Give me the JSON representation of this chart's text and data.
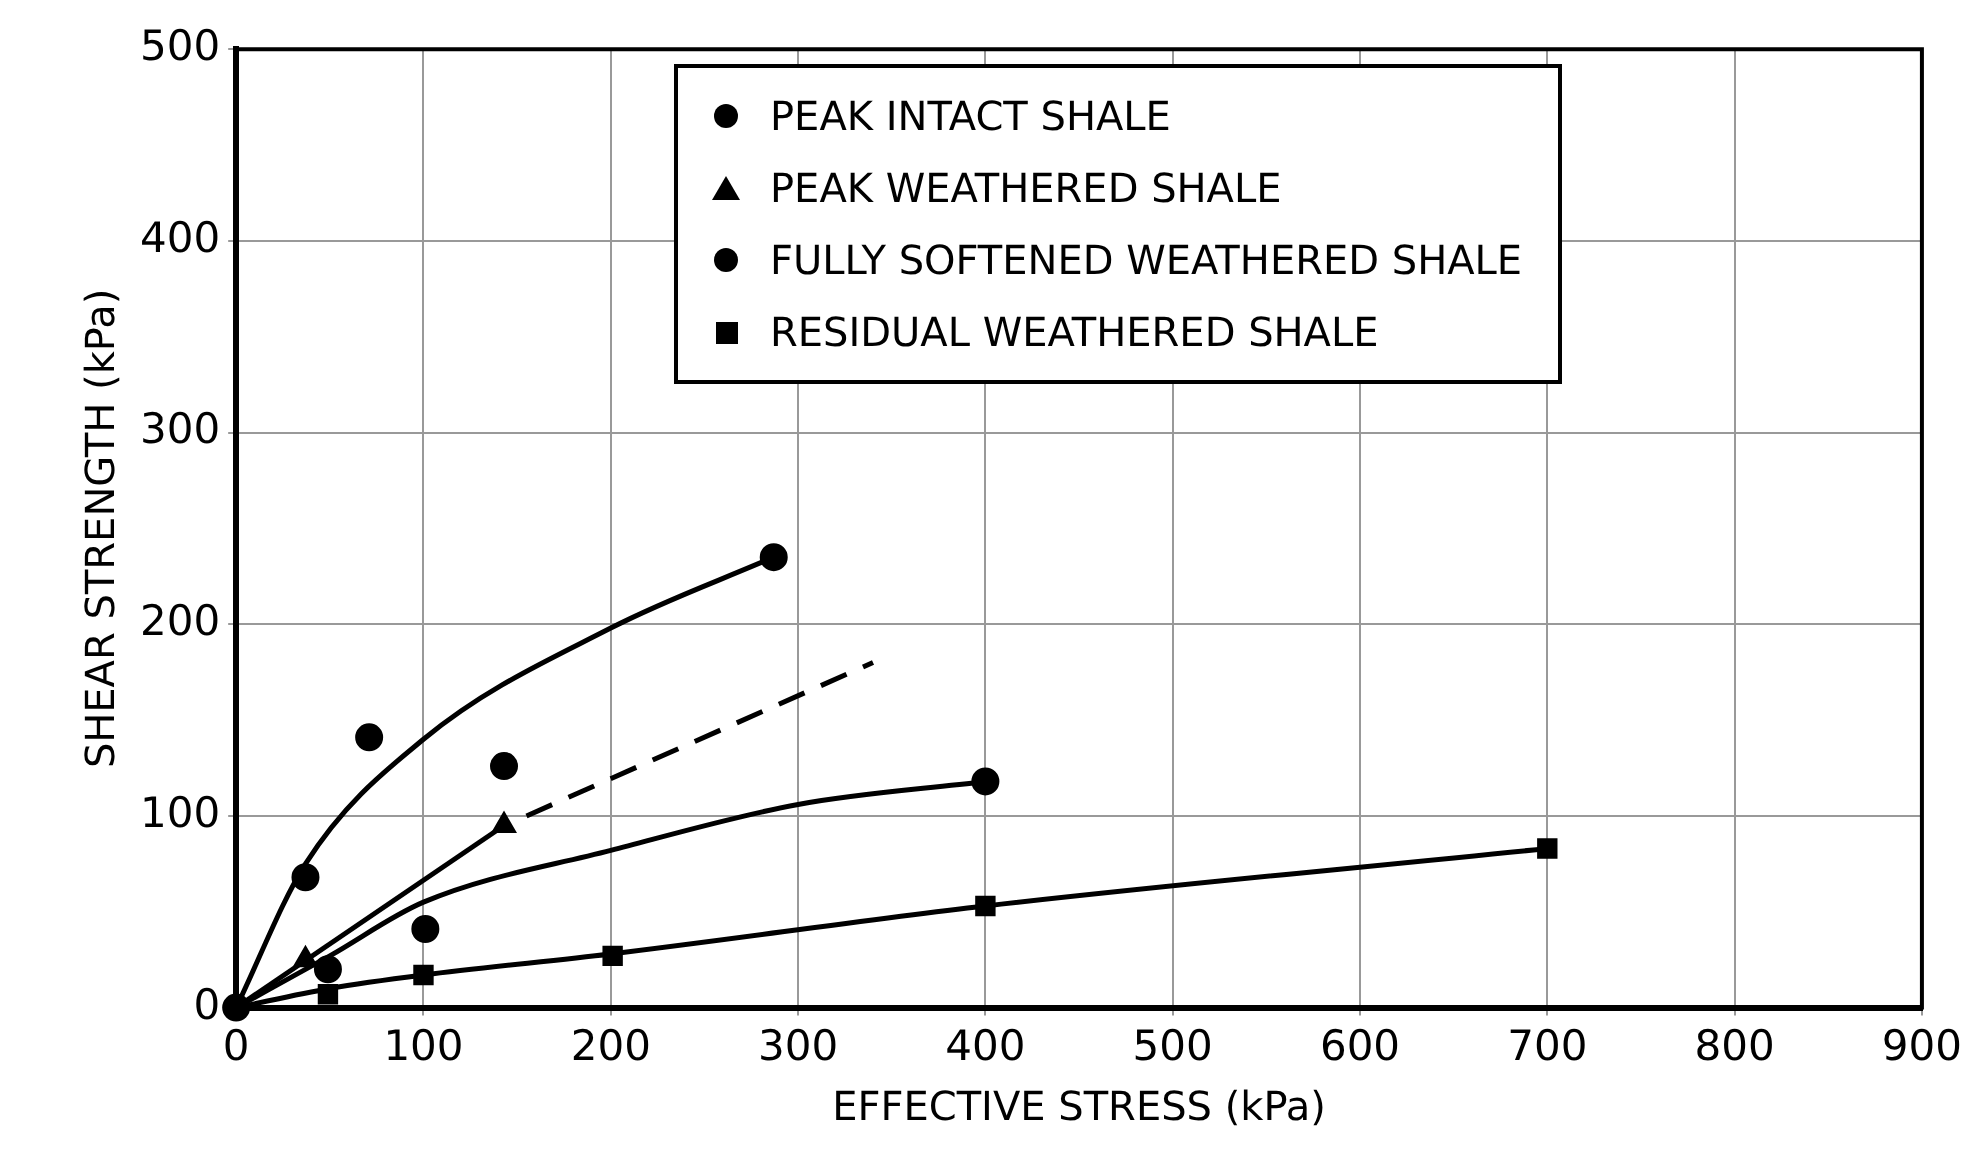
{
  "chart_data": {
    "type": "scatter",
    "xlabel": "EFFECTIVE STRESS (kPa)",
    "ylabel": "SHEAR STRENGTH (kPa)",
    "xlim": [
      0,
      900
    ],
    "xticks": [
      0,
      100,
      200,
      300,
      400,
      500,
      600,
      700,
      800,
      900
    ],
    "ylim": [
      0,
      500
    ],
    "yticks": [
      0,
      100,
      200,
      300,
      400,
      500
    ],
    "grid": true,
    "legend": "top right",
    "series": [
      {
        "name": "PEAK INTACT SHALE",
        "marker": "circle",
        "color": "#000000",
        "x": [
          0,
          37,
          71,
          143,
          287
        ],
        "values": [
          0,
          68,
          141,
          126,
          235
        ]
      },
      {
        "name": "PEAK WEATHERED SHALE",
        "marker": "triangle",
        "color": "#000000",
        "x": [
          37,
          143
        ],
        "values": [
          25,
          95
        ]
      },
      {
        "name": "FULLY SOFTENED WEATHERED SHALE",
        "marker": "circle",
        "color": "#000000",
        "x": [
          49,
          101,
          400
        ],
        "values": [
          20,
          41,
          118
        ]
      },
      {
        "name": "RESIDUAL WEATHERED SHALE",
        "marker": "square",
        "color": "#000000",
        "x": [
          49,
          100,
          201,
          400,
          700
        ],
        "values": [
          7,
          17,
          27,
          53,
          83
        ]
      },
      {
        "type": "line",
        "marker": "none",
        "line_style": "solid",
        "color": "#000000",
        "x": [
          0,
          37,
          100,
          200,
          287
        ],
        "values": [
          0,
          75,
          140,
          198,
          235
        ]
      },
      {
        "type": "line",
        "marker": "none",
        "line_style": "solid",
        "color": "#000000",
        "x": [
          0,
          143
        ],
        "values": [
          0,
          95
        ]
      },
      {
        "type": "line",
        "marker": "none",
        "line_style": "dashed",
        "color": "#000000",
        "x": [
          155,
          340
        ],
        "values": [
          100,
          180
        ]
      },
      {
        "type": "line",
        "marker": "none",
        "line_style": "solid",
        "color": "#000000",
        "x": [
          0,
          50,
          100,
          200,
          300,
          400
        ],
        "values": [
          0,
          27,
          55,
          82,
          106,
          118
        ]
      },
      {
        "type": "line",
        "marker": "none",
        "line_style": "solid",
        "color": "#000000",
        "x": [
          0,
          50,
          100,
          200,
          400,
          700
        ],
        "values": [
          0,
          10,
          17,
          28,
          53,
          83
        ]
      }
    ]
  }
}
